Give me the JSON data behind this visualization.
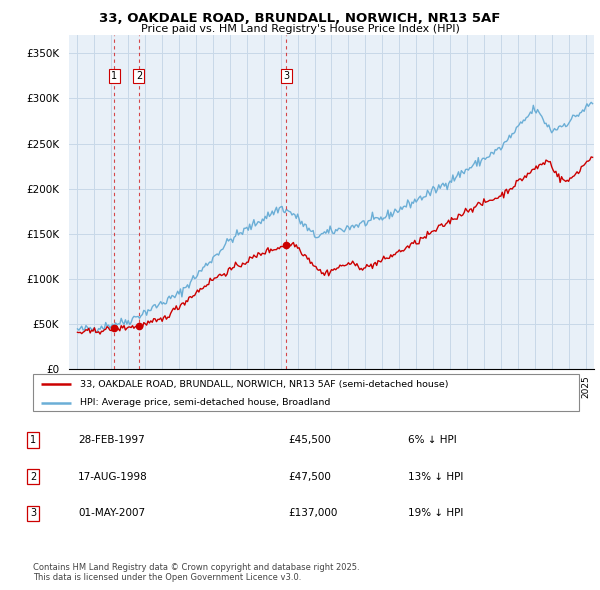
{
  "title_line1": "33, OAKDALE ROAD, BRUNDALL, NORWICH, NR13 5AF",
  "title_line2": "Price paid vs. HM Land Registry's House Price Index (HPI)",
  "ylabel_ticks": [
    "£0",
    "£50K",
    "£100K",
    "£150K",
    "£200K",
    "£250K",
    "£300K",
    "£350K"
  ],
  "ytick_values": [
    0,
    50000,
    100000,
    150000,
    200000,
    250000,
    300000,
    350000
  ],
  "ylim": [
    0,
    370000
  ],
  "xlim_start": 1994.5,
  "xlim_end": 2025.5,
  "legend_line1": "33, OAKDALE ROAD, BRUNDALL, NORWICH, NR13 5AF (semi-detached house)",
  "legend_line2": "HPI: Average price, semi-detached house, Broadland",
  "property_color": "#cc0000",
  "hpi_color": "#6baed6",
  "chart_bg_color": "#e8f0f8",
  "transactions": [
    {
      "label": "1",
      "date": 1997.16,
      "price": 45500,
      "note": "28-FEB-1997",
      "price_str": "£45,500",
      "hpi_note": "6% ↓ HPI"
    },
    {
      "label": "2",
      "date": 1998.63,
      "price": 47500,
      "note": "17-AUG-1998",
      "price_str": "£47,500",
      "hpi_note": "13% ↓ HPI"
    },
    {
      "label": "3",
      "date": 2007.33,
      "price": 137000,
      "note": "01-MAY-2007",
      "price_str": "£137,000",
      "hpi_note": "19% ↓ HPI"
    }
  ],
  "footer": "Contains HM Land Registry data © Crown copyright and database right 2025.\nThis data is licensed under the Open Government Licence v3.0.",
  "grid_color": "#c8d8e8"
}
